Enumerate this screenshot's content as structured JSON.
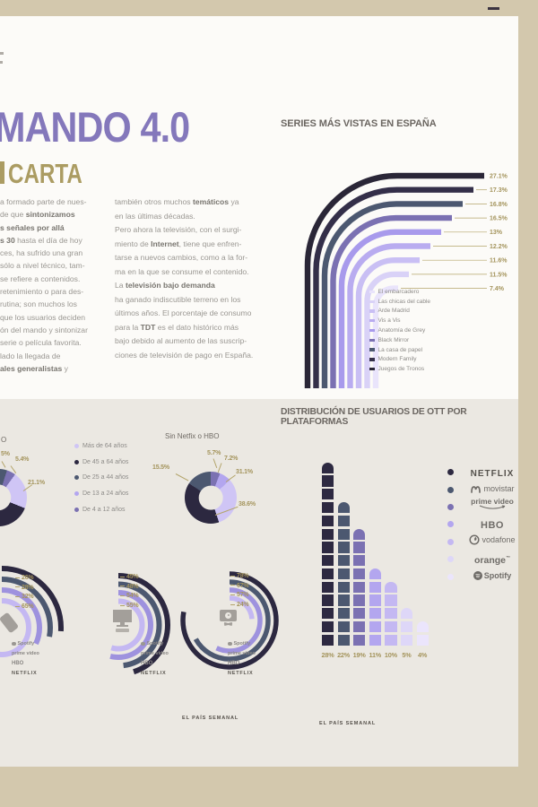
{
  "header": {
    "title": "MANDO 4.0",
    "subtitle": "CARTA",
    "accent_color": "#8478bb",
    "gold_color": "#a4945c"
  },
  "intro": {
    "col1_lines": [
      "a formado parte de nues-",
      "de que **sintonizamos**",
      "**s señales por allá**",
      "**s 30** hasta el día de hoy",
      "ces, ha sufrido una gran",
      "sólo a nivel técnico, tam-",
      "se refiere a contenidos.",
      "retenimiento o para des-",
      "rutina; son muchos los",
      "que los usuarios deciden",
      "ón del mando y sintonizar",
      "serie o película favorita.",
      "lado la llegada de",
      "**ales generalistas** y"
    ],
    "col2_lines": [
      "también otros muchos **temáticos** ya",
      "en las últimas décadas.",
      "Pero ahora la televisión, con el surgi-",
      "miento de **Internet**, tiene que enfren-",
      "tarse a nuevos cambios, como a la for-",
      "ma en la que se consume el contenido.",
      "La **televisión bajo demanda**",
      "ha ganado indiscutible terreno en los",
      "últimos años. El porcentaje de consumo",
      "para la **TDT** es el dato histórico más",
      "bajo debido al aumento de las suscrip-",
      "ciones de televisión de pago en España."
    ]
  },
  "series_chart": {
    "title": "SERIES MÁS VISTAS EN ESPAÑA",
    "bars": [
      {
        "name": "Juegos de Tronos",
        "value": 27.1,
        "label": "27.1%",
        "color": "#2a2637"
      },
      {
        "name": "Modern Family",
        "value": 17.3,
        "label": "17.3%",
        "color": "#342f49"
      },
      {
        "name": "La casa de papel",
        "value": 16.8,
        "label": "16.8%",
        "color": "#4c5870"
      },
      {
        "name": "Black Mirror",
        "value": 16.5,
        "label": "16.5%",
        "color": "#7b71b2"
      },
      {
        "name": "Anatomía de Grey",
        "value": 13,
        "label": "13%",
        "color": "#a89aec"
      },
      {
        "name": "Vis a Vis",
        "value": 12.2,
        "label": "12.2%",
        "color": "#b9acf0"
      },
      {
        "name": "Arde Madrid",
        "value": 11.6,
        "label": "11.6%",
        "color": "#c9bff4"
      },
      {
        "name": "Las chicas del cable",
        "value": 11.5,
        "label": "11.5%",
        "color": "#d9d2f7"
      },
      {
        "name": "El embarcadero",
        "value": 7.4,
        "label": "7.4%",
        "color": "#e9e4fb"
      }
    ]
  },
  "age_groups": [
    {
      "label": "Más de 64 años",
      "color": "#cfc5f5"
    },
    {
      "label": "De 45 a 64 años",
      "color": "#2c2840"
    },
    {
      "label": "De 25 a 44 años",
      "color": "#4c5870"
    },
    {
      "label": "De 13 a 24 años",
      "color": "#b3a6ef"
    },
    {
      "label": "De 4 a 12 años",
      "color": "#7b71b2"
    }
  ],
  "donut": {
    "title": "Sin Netfix o HBO",
    "segments": [
      {
        "group": "De 4 a 12 años",
        "label": "5.7%",
        "value": 5.7,
        "color": "#7b71b2"
      },
      {
        "group": "De 13 a 24 años",
        "label": "7.2%",
        "value": 7.2,
        "color": "#b3a6ef"
      },
      {
        "group": "Más de 64 años",
        "label": "31.1%",
        "value": 31.1,
        "color": "#cfc5f5"
      },
      {
        "group": "De 45 a 64 años",
        "label": "38.6%",
        "value": 38.6,
        "color": "#2c2840"
      },
      {
        "group": "De 25 a 44 años",
        "label": "15.5%",
        "value": 15.5,
        "color": "#4c5870"
      }
    ]
  },
  "partial_donut": {
    "title_fragment": "O",
    "labels": [
      "5%",
      "5.4%",
      "21.1%"
    ]
  },
  "ott_section": {
    "title": "DISTRIBUCIÓN DE USUARIOS DE OTT POR PLATAFORMAS",
    "columns": [
      {
        "platform": "NETFLIX",
        "label": "28%",
        "units": 14,
        "color": "#2d2941"
      },
      {
        "platform": "movistar",
        "label": "22%",
        "units": 11,
        "color": "#4c5870"
      },
      {
        "platform": "prime video",
        "label": "19%",
        "units": 9,
        "color": "#7b71b2"
      },
      {
        "platform": "HBO",
        "label": "11%",
        "units": 6,
        "color": "#b3a6ef"
      },
      {
        "platform": "vodafone",
        "label": "10%",
        "units": 5,
        "color": "#c4b8f2"
      },
      {
        "platform": "orange",
        "label": "5%",
        "units": 3,
        "color": "#ded7f8"
      },
      {
        "platform": "Spotify",
        "label": "4%",
        "units": 2,
        "color": "#ebe5fc"
      }
    ],
    "legend": [
      {
        "name": "NETFLIX",
        "color": "#2d2941"
      },
      {
        "name": "movistar",
        "color": "#4c5870"
      },
      {
        "name": "prime video",
        "color": "#7b71b2"
      },
      {
        "name": "HBO",
        "color": "#b3a6ef"
      },
      {
        "name": "vodafone",
        "color": "#c4b8f2"
      },
      {
        "name": "orange",
        "color": "#ded7f8"
      },
      {
        "name": "Spotify",
        "color": "#ebe5fc"
      }
    ]
  },
  "devices": {
    "row_labels": [
      "Spotify",
      "prime video",
      "HBO",
      "NETFLIX"
    ],
    "arc_platforms_outer_to_inner": [
      "NETFLIX",
      "HBO",
      "prime video",
      "Spotify"
    ],
    "arc_colors": [
      "#2c2840",
      "#4c5870",
      "#9e92de",
      "#c4b8f2"
    ],
    "sets": [
      {
        "device": "smartphone",
        "labels": [
          "26%",
          "28%",
          "32%",
          "65%"
        ],
        "values": [
          26,
          28,
          32,
          65
        ]
      },
      {
        "device": "computer",
        "labels": [
          "45%",
          "48%",
          "54%",
          "55%"
        ],
        "values": [
          45,
          48,
          54,
          55
        ]
      },
      {
        "device": "smart-tv",
        "labels": [
          "78%",
          "67%",
          "57%",
          "24%"
        ],
        "values": [
          78,
          67,
          57,
          24
        ]
      }
    ]
  },
  "icons": {
    "smartphone": "smartphone-icon",
    "computer": "desktop-monitor-icon",
    "smart_tv": "smart-tv-icon",
    "spotify": "spotify-circle-icon",
    "movistar": "movistar-m-icon",
    "prime": "prime-smile-arrow-icon",
    "vodafone": "vodafone-speechmark-icon"
  },
  "footer": {
    "left": "EL PAÍS SEMANAL",
    "right": "EL PAÍS SEMANAL"
  },
  "chart_data": [
    {
      "type": "bar",
      "style": "curved-hook-bars",
      "title": "SERIES MÁS VISTAS EN ESPAÑA",
      "categories": [
        "Juegos de Tronos",
        "Modern Family",
        "La casa de papel",
        "Black Mirror",
        "Anatomía de Grey",
        "Vis a Vis",
        "Arde Madrid",
        "Las chicas del cable",
        "El embarcadero"
      ],
      "values": [
        27.1,
        17.3,
        16.8,
        16.5,
        13,
        12.2,
        11.6,
        11.5,
        7.4
      ],
      "unit": "%",
      "legend_position": "bottom-right"
    },
    {
      "type": "pie",
      "style": "donut",
      "title": "Sin Netfix o HBO",
      "labels": [
        "De 4 a 12 años",
        "De 13 a 24 años",
        "Más de 64 años",
        "De 45 a 64 años",
        "De 25 a 44 años"
      ],
      "values": [
        5.7,
        7.2,
        31.1,
        38.6,
        15.5
      ],
      "unit": "%"
    },
    {
      "type": "pie",
      "style": "donut",
      "title": "",
      "partial": true,
      "visible_labels": [
        "5%",
        "5.4%",
        "21.1%"
      ]
    },
    {
      "type": "bar",
      "style": "waffle-columns",
      "title": "DISTRIBUCIÓN DE USUARIOS DE OTT POR PLATAFORMAS",
      "categories": [
        "NETFLIX",
        "movistar",
        "prime video",
        "HBO",
        "vodafone",
        "orange",
        "Spotify"
      ],
      "values": [
        28,
        22,
        19,
        11,
        10,
        5,
        4
      ],
      "unit": "%",
      "legend_position": "right"
    },
    {
      "type": "bar",
      "style": "concentric-arcs-by-device",
      "title": "",
      "categories": [
        "NETFLIX",
        "HBO",
        "prime video",
        "Spotify"
      ],
      "series": [
        {
          "name": "smartphone",
          "values": [
            26,
            28,
            32,
            65
          ]
        },
        {
          "name": "computer",
          "values": [
            45,
            48,
            54,
            55
          ]
        },
        {
          "name": "smart-tv",
          "values": [
            78,
            67,
            57,
            24
          ]
        }
      ],
      "unit": "%"
    }
  ]
}
